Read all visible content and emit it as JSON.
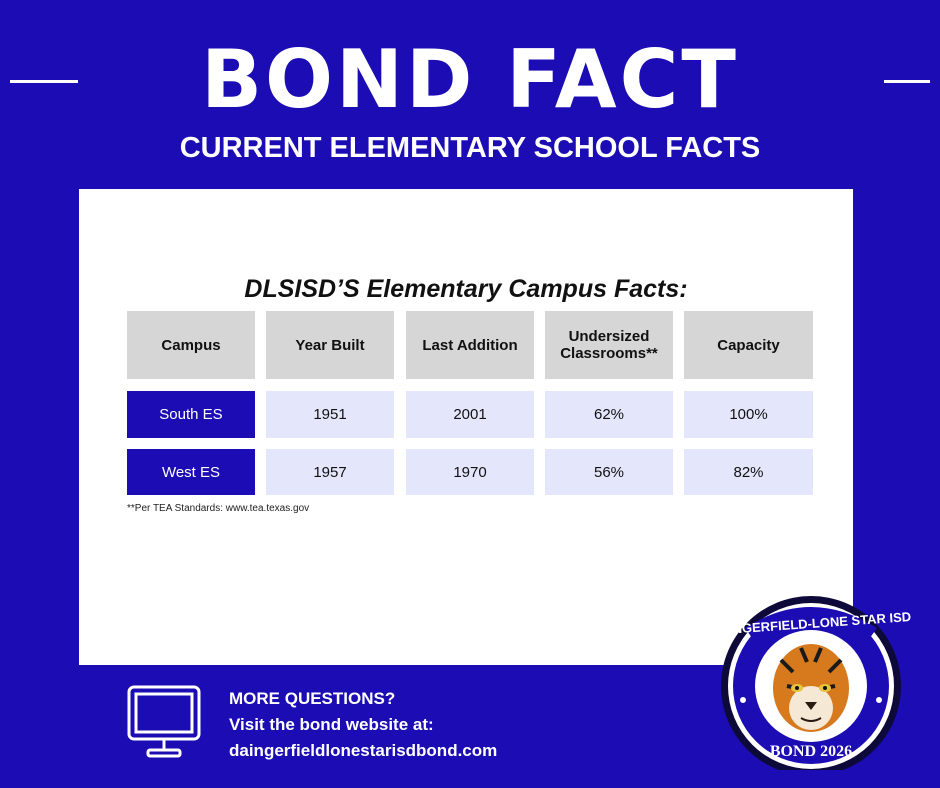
{
  "header": {
    "title": "BOND FACT",
    "subtitle": "CURRENT ELEMENTARY SCHOOL FACTS"
  },
  "table": {
    "title": "DLSISD’S Elementary Campus Facts:",
    "columns": [
      "Campus",
      "Year Built",
      "Last Addition",
      "Undersized Classrooms**",
      "Capacity"
    ],
    "rows": [
      [
        "South ES",
        "1951",
        "2001",
        "62%",
        "100%"
      ],
      [
        "West ES",
        "1957",
        "1970",
        "56%",
        "82%"
      ]
    ],
    "footnote": "**Per TEA Standards: www.tea.texas.gov"
  },
  "footer": {
    "line1": "MORE QUESTIONS?",
    "line2": "Visit the bond website at:",
    "line3": "daingerfieldlonestarisdbond.com"
  },
  "seal": {
    "text_top": "DAINGERFIELD-LONE STAR ISD",
    "text_bottom": "BOND 2026"
  },
  "colors": {
    "brand_blue": "#1b0db3",
    "header_gray": "#d6d6d6",
    "cell_light": "#e4e6fb"
  },
  "icons": [
    "computer-monitor-icon",
    "tiger-seal-logo"
  ]
}
